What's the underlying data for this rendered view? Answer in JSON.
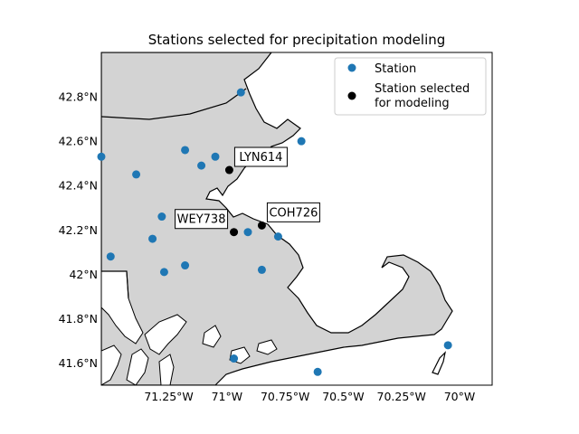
{
  "chart_data": {
    "type": "scatter",
    "title": "Stations selected for precipitation modeling",
    "xlim": [
      -71.54,
      -69.86
    ],
    "ylim": [
      41.5,
      43.0
    ],
    "x_ticks": [
      {
        "value": -71.25,
        "label": "71.25°W"
      },
      {
        "value": -71.0,
        "label": "71°W"
      },
      {
        "value": -70.75,
        "label": "70.75°W"
      },
      {
        "value": -70.5,
        "label": "70.5°W"
      },
      {
        "value": -70.25,
        "label": "70.25°W"
      },
      {
        "value": -70.0,
        "label": "70°W"
      }
    ],
    "y_ticks": [
      {
        "value": 41.6,
        "label": "41.6°N"
      },
      {
        "value": 41.8,
        "label": "41.8°N"
      },
      {
        "value": 42.0,
        "label": "42°N"
      },
      {
        "value": 42.2,
        "label": "42.2°N"
      },
      {
        "value": 42.4,
        "label": "42.4°N"
      },
      {
        "value": 42.6,
        "label": "42.6°N"
      },
      {
        "value": 42.8,
        "label": "42.8°N"
      }
    ],
    "legend": {
      "position": "top-right",
      "entries": [
        {
          "label": "Station",
          "color": "#1f77b4"
        },
        {
          "label_lines": [
            "Station selected",
            "for modeling"
          ],
          "color": "#000000"
        }
      ]
    },
    "series": [
      {
        "name": "Station",
        "color": "#1f77b4",
        "points": [
          {
            "lon": -70.94,
            "lat": 42.82
          },
          {
            "lon": -70.68,
            "lat": 42.6
          },
          {
            "lon": -71.18,
            "lat": 42.56
          },
          {
            "lon": -71.05,
            "lat": 42.53
          },
          {
            "lon": -71.11,
            "lat": 42.49
          },
          {
            "lon": -71.39,
            "lat": 42.45
          },
          {
            "lon": -71.54,
            "lat": 42.53
          },
          {
            "lon": -71.28,
            "lat": 42.26
          },
          {
            "lon": -71.32,
            "lat": 42.16
          },
          {
            "lon": -70.91,
            "lat": 42.19
          },
          {
            "lon": -70.78,
            "lat": 42.17
          },
          {
            "lon": -71.5,
            "lat": 42.08
          },
          {
            "lon": -71.27,
            "lat": 42.01
          },
          {
            "lon": -71.18,
            "lat": 42.04
          },
          {
            "lon": -70.85,
            "lat": 42.02
          },
          {
            "lon": -70.97,
            "lat": 41.62
          },
          {
            "lon": -70.61,
            "lat": 41.56
          },
          {
            "lon": -70.05,
            "lat": 41.68
          }
        ]
      },
      {
        "name": "Station selected for modeling",
        "color": "#000000",
        "points": [
          {
            "lon": -70.99,
            "lat": 42.47,
            "label": "LYN614",
            "label_side": "right"
          },
          {
            "lon": -70.85,
            "lat": 42.22,
            "label": "COH726",
            "label_side": "right"
          },
          {
            "lon": -70.97,
            "lat": 42.19,
            "label": "WEY738",
            "label_side": "left"
          }
        ]
      }
    ]
  },
  "map": {
    "land_color": "#d3d3d3",
    "water_color": "#ffffff",
    "border_color": "#000000"
  }
}
